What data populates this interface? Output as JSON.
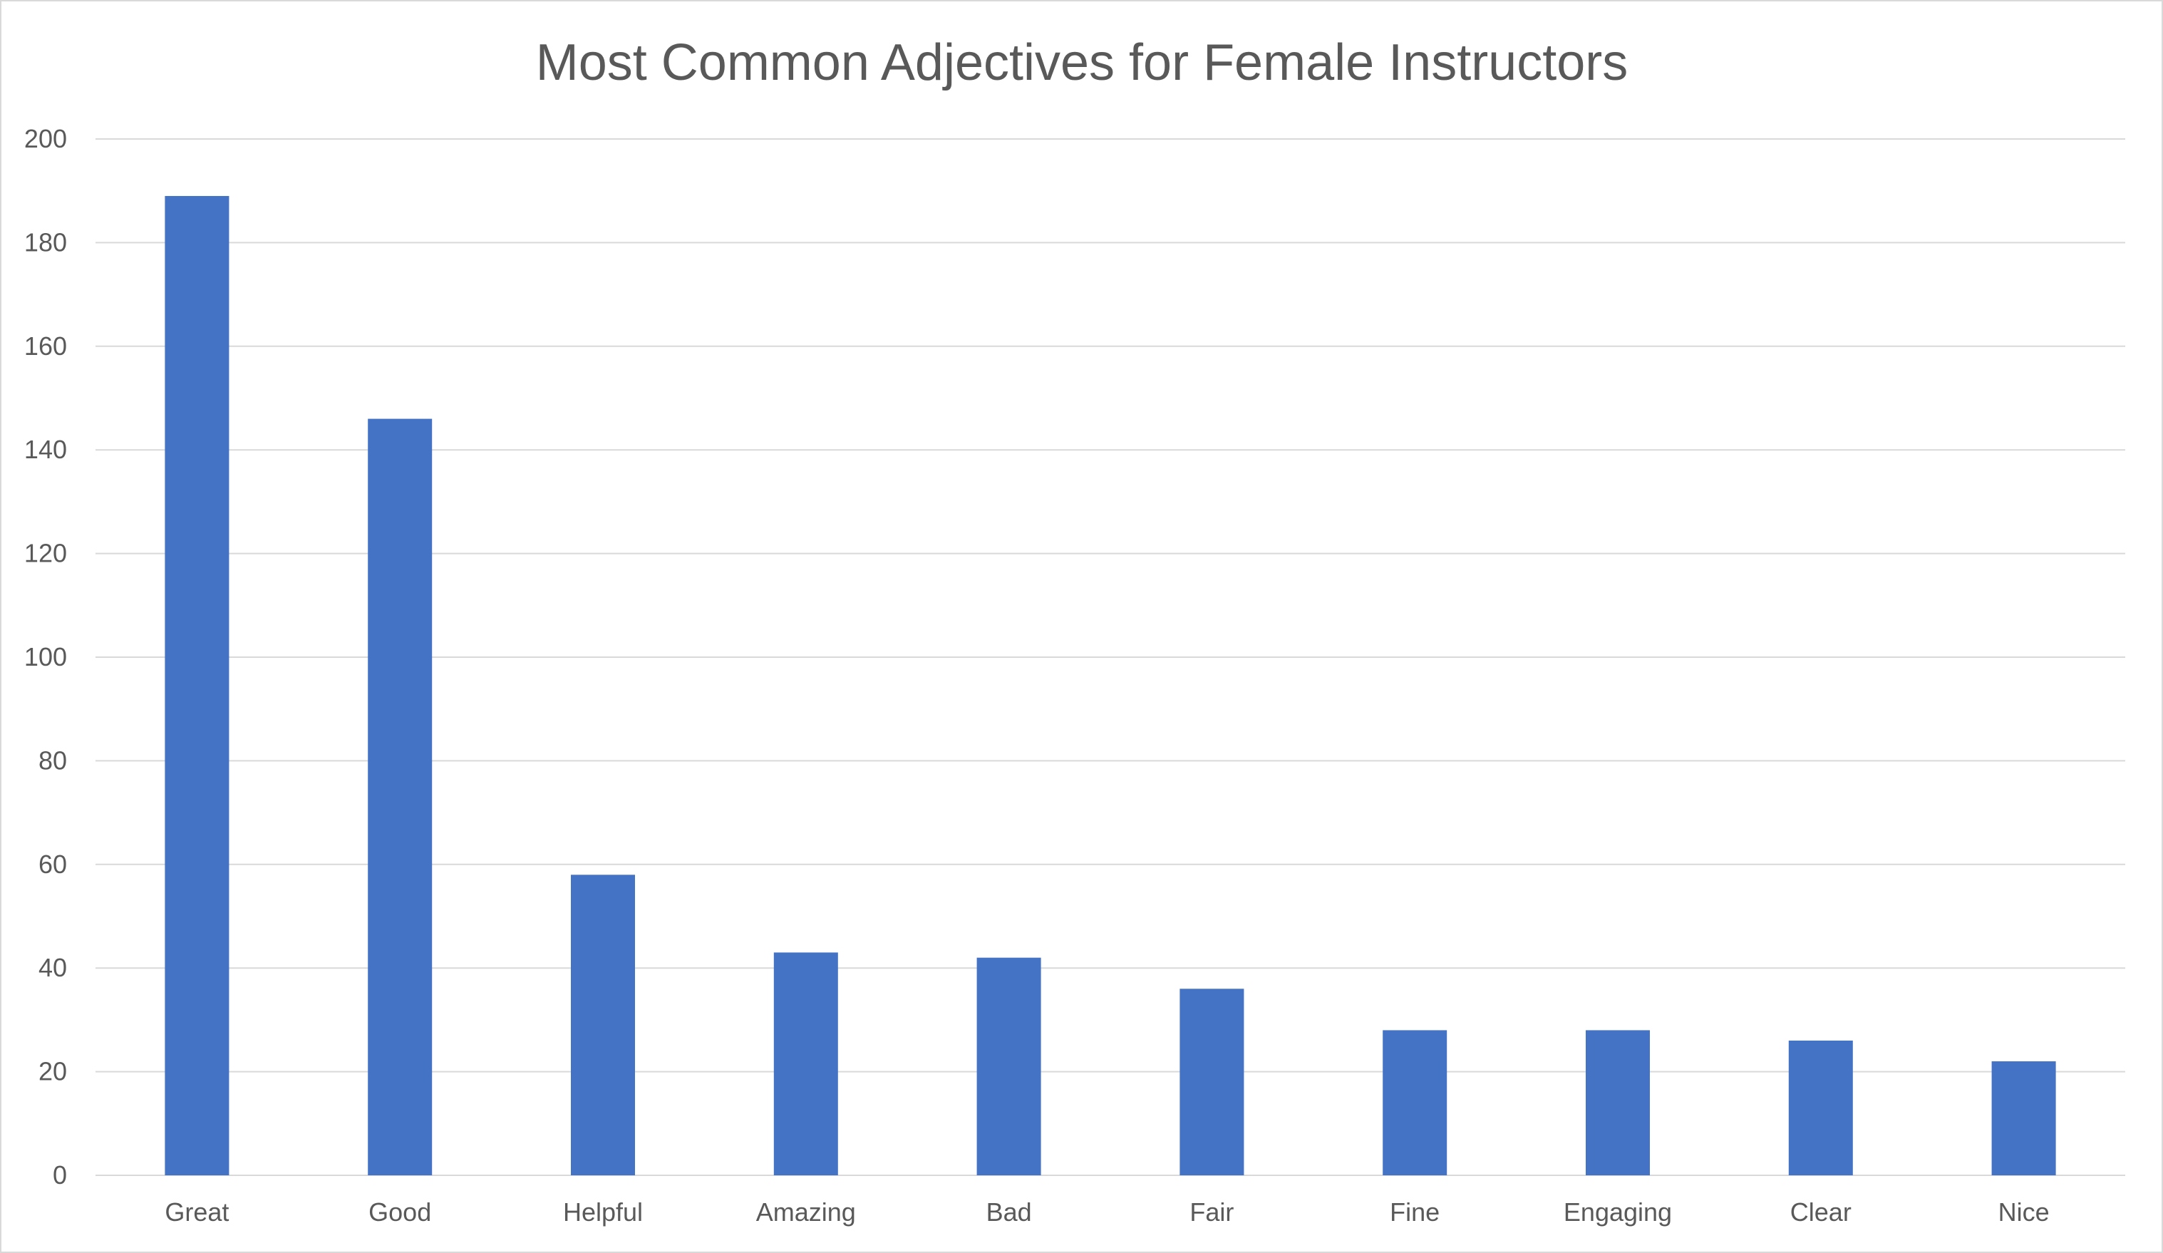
{
  "chart_data": {
    "type": "bar",
    "title": "Most Common Adjectives for Female Instructors",
    "xlabel": "",
    "ylabel": "",
    "categories": [
      "Great",
      "Good",
      "Helpful",
      "Amazing",
      "Bad",
      "Fair",
      "Fine",
      "Engaging",
      "Clear",
      "Nice"
    ],
    "values": [
      189,
      146,
      58,
      43,
      42,
      36,
      28,
      28,
      26,
      22
    ],
    "ylim": [
      0,
      200
    ],
    "yticks": [
      0,
      20,
      40,
      60,
      80,
      100,
      120,
      140,
      160,
      180,
      200
    ],
    "grid": true,
    "legend": "none",
    "bar_color": "#4472C4",
    "text_color": "#595959",
    "grid_color": "#D9D9D9"
  }
}
